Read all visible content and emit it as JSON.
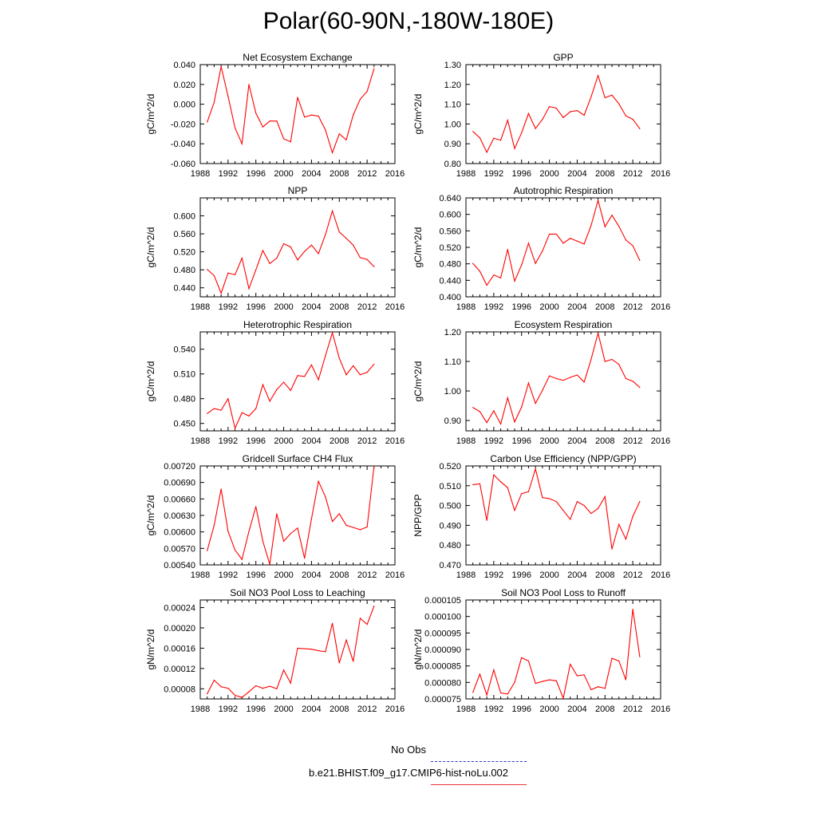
{
  "figure": {
    "title": "Polar(60-90N,-180W-180E)",
    "legend": [
      {
        "label": "No Obs",
        "color": "#3333cc",
        "style": "dashed"
      },
      {
        "label": "b.e21.BHIST.f09_g17.CMIP6-hist-noLu.002",
        "color": "#e8383a",
        "style": "solid"
      }
    ],
    "line_color": "#ff0000"
  },
  "chart_data": [
    {
      "type": "line",
      "title": "Net Ecosystem Exchange",
      "ylabel": "gC/m^2/d",
      "xlim": [
        1988,
        2016
      ],
      "ylim": [
        -0.06,
        0.04
      ],
      "xticks": [
        "1988",
        "1992",
        "1996",
        "2000",
        "2004",
        "2008",
        "2012",
        "2016"
      ],
      "yticks": [
        "-0.060",
        "-0.040",
        "-0.020",
        "0.000",
        "0.020",
        "0.040"
      ],
      "x": [
        1989,
        1990,
        1991,
        1992,
        1993,
        1994,
        1995,
        1996,
        1997,
        1998,
        1999,
        2000,
        2001,
        2002,
        2003,
        2004,
        2005,
        2006,
        2007,
        2008,
        2009,
        2010,
        2011,
        2012,
        2013
      ],
      "values": [
        -0.018,
        0.002,
        0.038,
        0.008,
        -0.024,
        -0.04,
        0.02,
        -0.009,
        -0.023,
        -0.017,
        -0.017,
        -0.035,
        -0.038,
        0.007,
        -0.013,
        -0.011,
        -0.012,
        -0.026,
        -0.049,
        -0.03,
        -0.036,
        -0.011,
        0.005,
        0.013,
        0.036
      ]
    },
    {
      "type": "line",
      "title": "GPP",
      "ylabel": "gC/m^2/d",
      "xlim": [
        1988,
        2016
      ],
      "ylim": [
        0.8,
        1.3
      ],
      "xticks": [
        "1988",
        "1992",
        "1996",
        "2000",
        "2004",
        "2008",
        "2012",
        "2016"
      ],
      "yticks": [
        "0.80",
        "0.90",
        "1.00",
        "1.10",
        "1.20",
        "1.30"
      ],
      "x": [
        1989,
        1990,
        1991,
        1992,
        1993,
        1994,
        1995,
        1996,
        1997,
        1998,
        1999,
        2000,
        2001,
        2002,
        2003,
        2004,
        2005,
        2006,
        2007,
        2008,
        2009,
        2010,
        2011,
        2012,
        2013
      ],
      "values": [
        0.962,
        0.93,
        0.857,
        0.928,
        0.918,
        1.019,
        0.876,
        0.955,
        1.053,
        0.977,
        1.023,
        1.088,
        1.08,
        1.032,
        1.062,
        1.068,
        1.044,
        1.137,
        1.245,
        1.133,
        1.146,
        1.102,
        1.041,
        1.024,
        0.976
      ]
    },
    {
      "type": "line",
      "title": "NPP",
      "ylabel": "gC/m^2/d",
      "xlim": [
        1988,
        2016
      ],
      "ylim": [
        0.42,
        0.64
      ],
      "xticks": [
        "1988",
        "1992",
        "1996",
        "2000",
        "2004",
        "2008",
        "2012",
        "2016"
      ],
      "yticks": [
        "0.440",
        "0.480",
        "0.520",
        "0.560",
        "0.600"
      ],
      "x": [
        1989,
        1990,
        1991,
        1992,
        1993,
        1994,
        1995,
        1996,
        1997,
        1998,
        1999,
        2000,
        2001,
        2002,
        2003,
        2004,
        2005,
        2006,
        2007,
        2008,
        2009,
        2010,
        2011,
        2012,
        2013
      ],
      "values": [
        0.481,
        0.467,
        0.428,
        0.473,
        0.469,
        0.506,
        0.438,
        0.48,
        0.523,
        0.494,
        0.506,
        0.538,
        0.531,
        0.502,
        0.521,
        0.535,
        0.516,
        0.558,
        0.611,
        0.564,
        0.55,
        0.535,
        0.507,
        0.503,
        0.487
      ]
    },
    {
      "type": "line",
      "title": "Autotrophic Respiration",
      "ylabel": "gC/m^2/d",
      "xlim": [
        1988,
        2016
      ],
      "ylim": [
        0.4,
        0.64
      ],
      "xticks": [
        "1988",
        "1992",
        "1996",
        "2000",
        "2004",
        "2008",
        "2012",
        "2016"
      ],
      "yticks": [
        "0.400",
        "0.440",
        "0.480",
        "0.520",
        "0.560",
        "0.600",
        "0.640"
      ],
      "x": [
        1989,
        1990,
        1991,
        1992,
        1993,
        1994,
        1995,
        1996,
        1997,
        1998,
        1999,
        2000,
        2001,
        2002,
        2003,
        2004,
        2005,
        2006,
        2007,
        2008,
        2009,
        2010,
        2011,
        2012,
        2013
      ],
      "values": [
        0.481,
        0.462,
        0.428,
        0.453,
        0.446,
        0.515,
        0.438,
        0.477,
        0.53,
        0.481,
        0.511,
        0.552,
        0.552,
        0.53,
        0.542,
        0.535,
        0.528,
        0.573,
        0.634,
        0.57,
        0.598,
        0.571,
        0.538,
        0.524,
        0.488
      ]
    },
    {
      "type": "line",
      "title": "Heterotrophic Respiration",
      "ylabel": "gC/m^2/d",
      "xlim": [
        1988,
        2016
      ],
      "ylim": [
        0.441,
        0.561
      ],
      "xticks": [
        "1988",
        "1992",
        "1996",
        "2000",
        "2004",
        "2008",
        "2012",
        "2016"
      ],
      "yticks": [
        "0.450",
        "0.480",
        "0.510",
        "0.540"
      ],
      "x": [
        1989,
        1990,
        1991,
        1992,
        1993,
        1994,
        1995,
        1996,
        1997,
        1998,
        1999,
        2000,
        2001,
        2002,
        2003,
        2004,
        2005,
        2006,
        2007,
        2008,
        2009,
        2010,
        2011,
        2012,
        2013
      ],
      "values": [
        0.462,
        0.468,
        0.466,
        0.48,
        0.444,
        0.463,
        0.459,
        0.468,
        0.497,
        0.477,
        0.491,
        0.5,
        0.49,
        0.508,
        0.507,
        0.521,
        0.503,
        0.532,
        0.56,
        0.529,
        0.509,
        0.52,
        0.509,
        0.512,
        0.522
      ]
    },
    {
      "type": "line",
      "title": "Ecosystem Respiration",
      "ylabel": "gC/m^2/d",
      "xlim": [
        1988,
        2016
      ],
      "ylim": [
        0.865,
        1.2
      ],
      "xticks": [
        "1988",
        "1992",
        "1996",
        "2000",
        "2004",
        "2008",
        "2012",
        "2016"
      ],
      "yticks": [
        "0.90",
        "1.00",
        "1.10",
        "1.20"
      ],
      "x": [
        1989,
        1990,
        1991,
        1992,
        1993,
        1994,
        1995,
        1996,
        1997,
        1998,
        1999,
        2000,
        2001,
        2002,
        2003,
        2004,
        2005,
        2006,
        2007,
        2008,
        2009,
        2010,
        2011,
        2012,
        2013
      ],
      "values": [
        0.944,
        0.93,
        0.893,
        0.933,
        0.888,
        0.977,
        0.895,
        0.945,
        1.027,
        0.958,
        1.002,
        1.051,
        1.042,
        1.036,
        1.046,
        1.054,
        1.03,
        1.107,
        1.196,
        1.1,
        1.107,
        1.09,
        1.042,
        1.033,
        1.012
      ]
    },
    {
      "type": "line",
      "title": "Gridcell Surface CH4 Flux",
      "ylabel": "gC/m^2/d",
      "xlim": [
        1988,
        2016
      ],
      "ylim": [
        0.0054,
        0.0072
      ],
      "xticks": [
        "1988",
        "1992",
        "1996",
        "2000",
        "2004",
        "2008",
        "2012",
        "2016"
      ],
      "yticks": [
        "0.00540",
        "0.00570",
        "0.00600",
        "0.00630",
        "0.00660",
        "0.00690",
        "0.00720"
      ],
      "x": [
        1989,
        1990,
        1991,
        1992,
        1993,
        1994,
        1995,
        1996,
        1997,
        1998,
        1999,
        2000,
        2001,
        2002,
        2003,
        2004,
        2005,
        2006,
        2007,
        2008,
        2009,
        2010,
        2011,
        2012,
        2013
      ],
      "values": [
        0.00566,
        0.00612,
        0.00678,
        0.00601,
        0.00567,
        0.0055,
        0.00601,
        0.00646,
        0.00583,
        0.00541,
        0.00633,
        0.00583,
        0.00597,
        0.00607,
        0.00552,
        0.00624,
        0.00692,
        0.00664,
        0.00619,
        0.00633,
        0.00612,
        0.00608,
        0.00604,
        0.00609,
        0.0072
      ]
    },
    {
      "type": "line",
      "title": "Carbon Use Efficiency (NPP/GPP)",
      "ylabel": "NPP/GPP",
      "xlim": [
        1988,
        2016
      ],
      "ylim": [
        0.47,
        0.52
      ],
      "xticks": [
        "1988",
        "1992",
        "1996",
        "2000",
        "2004",
        "2008",
        "2012",
        "2016"
      ],
      "yticks": [
        "0.470",
        "0.480",
        "0.490",
        "0.500",
        "0.510",
        "0.520"
      ],
      "x": [
        1989,
        1990,
        1991,
        1992,
        1993,
        1994,
        1995,
        1996,
        1997,
        1998,
        1999,
        2000,
        2001,
        2002,
        2003,
        2004,
        2005,
        2006,
        2007,
        2008,
        2009,
        2010,
        2011,
        2012,
        2013
      ],
      "values": [
        0.5105,
        0.511,
        0.4925,
        0.5155,
        0.512,
        0.509,
        0.4975,
        0.506,
        0.507,
        0.5185,
        0.504,
        0.5035,
        0.502,
        0.4975,
        0.493,
        0.502,
        0.5,
        0.496,
        0.4985,
        0.5045,
        0.478,
        0.4905,
        0.483,
        0.4945,
        0.502
      ]
    },
    {
      "type": "line",
      "title": "Soil NO3 Pool Loss to Leaching",
      "ylabel": "gN/m^2/d",
      "xlim": [
        1988,
        2016
      ],
      "ylim": [
        6e-05,
        0.000255
      ],
      "xticks": [
        "1988",
        "1992",
        "1996",
        "2000",
        "2004",
        "2008",
        "2012",
        "2016"
      ],
      "yticks": [
        "0.00008",
        "0.00012",
        "0.00016",
        "0.00020",
        "0.00024"
      ],
      "x": [
        1989,
        1990,
        1991,
        1992,
        1993,
        1994,
        1995,
        1996,
        1997,
        1998,
        1999,
        2000,
        2001,
        2002,
        2003,
        2004,
        2005,
        2006,
        2007,
        2008,
        2009,
        2010,
        2011,
        2012,
        2013
      ],
      "values": [
        7e-05,
        9.7e-05,
        8.4e-05,
        8.1e-05,
        6.7e-05,
        6.3e-05,
        7.4e-05,
        8.6e-05,
        8.1e-05,
        8.5e-05,
        8e-05,
        0.000117,
        9.1e-05,
        0.00016,
        0.000159,
        0.000158,
        0.000155,
        0.000153,
        0.000209,
        0.000131,
        0.000176,
        0.000134,
        0.000219,
        0.000207,
        0.000243
      ]
    },
    {
      "type": "line",
      "title": "Soil NO3 Pool Loss to Runoff",
      "ylabel": "gN/m^2/d",
      "xlim": [
        1988,
        2016
      ],
      "ylim": [
        7.5e-05,
        0.000105
      ],
      "xticks": [
        "1988",
        "1992",
        "1996",
        "2000",
        "2004",
        "2008",
        "2012",
        "2016"
      ],
      "yticks": [
        "0.000075",
        "0.000080",
        "0.000085",
        "0.000090",
        "0.000095",
        "0.000100",
        "0.000105"
      ],
      "x": [
        1989,
        1990,
        1991,
        1992,
        1993,
        1994,
        1995,
        1996,
        1997,
        1998,
        1999,
        2000,
        2001,
        2002,
        2003,
        2004,
        2005,
        2006,
        2007,
        2008,
        2009,
        2010,
        2011,
        2012,
        2013
      ],
      "values": [
        7.7e-05,
        8.25e-05,
        7.62e-05,
        8.38e-05,
        7.68e-05,
        7.65e-05,
        8e-05,
        8.75e-05,
        8.65e-05,
        7.97e-05,
        8.03e-05,
        8.08e-05,
        8.05e-05,
        7.52e-05,
        8.55e-05,
        8.2e-05,
        8.23e-05,
        7.78e-05,
        7.87e-05,
        7.82e-05,
        8.73e-05,
        8.65e-05,
        8.08e-05,
        0.0001022,
        8.78e-05
      ]
    }
  ]
}
